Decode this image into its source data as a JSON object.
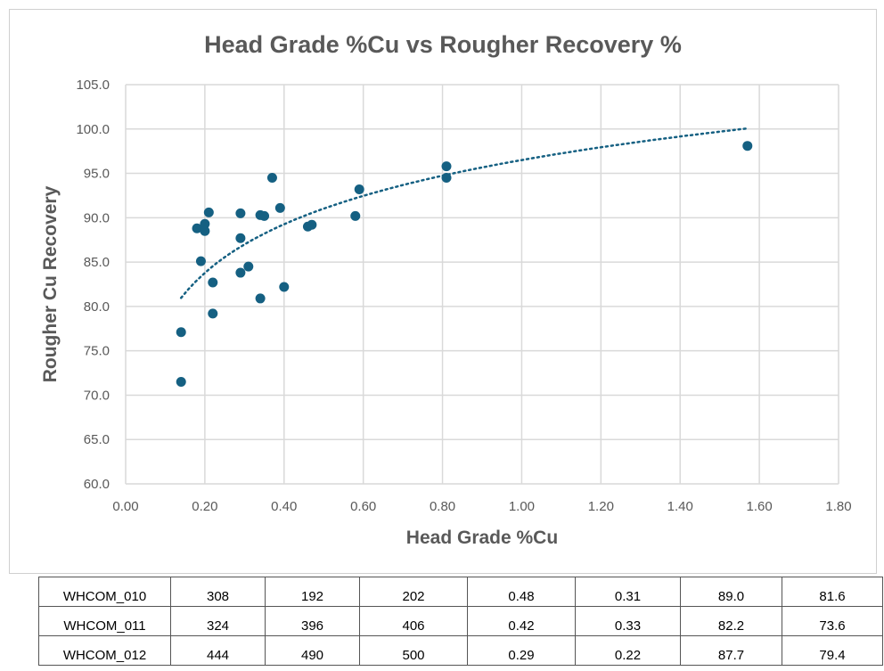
{
  "chart_data": {
    "type": "scatter",
    "title": "Head Grade %Cu vs Rougher Recovery %",
    "xlabel": "Head Grade %Cu",
    "ylabel": "Rougher Cu Recovery",
    "xlim": [
      0,
      1.8
    ],
    "ylim": [
      60,
      105
    ],
    "xticks": [
      "0.00",
      "0.20",
      "0.40",
      "0.60",
      "0.80",
      "1.00",
      "1.20",
      "1.40",
      "1.60",
      "1.80"
    ],
    "yticks": [
      "60.0",
      "65.0",
      "70.0",
      "75.0",
      "80.0",
      "85.0",
      "90.0",
      "95.0",
      "100.0",
      "105.0"
    ],
    "grid": true,
    "marker_color": "#156082",
    "points": [
      [
        0.14,
        71.5
      ],
      [
        0.14,
        77.1
      ],
      [
        0.18,
        88.8
      ],
      [
        0.2,
        89.3
      ],
      [
        0.2,
        88.5
      ],
      [
        0.21,
        90.6
      ],
      [
        0.19,
        85.1
      ],
      [
        0.22,
        82.7
      ],
      [
        0.22,
        79.2
      ],
      [
        0.29,
        90.5
      ],
      [
        0.29,
        87.7
      ],
      [
        0.29,
        83.8
      ],
      [
        0.31,
        84.5
      ],
      [
        0.34,
        80.9
      ],
      [
        0.34,
        90.3
      ],
      [
        0.35,
        90.2
      ],
      [
        0.37,
        94.5
      ],
      [
        0.39,
        91.1
      ],
      [
        0.4,
        82.2
      ],
      [
        0.46,
        89.0
      ],
      [
        0.47,
        89.2
      ],
      [
        0.58,
        90.2
      ],
      [
        0.59,
        93.2
      ],
      [
        0.81,
        95.8
      ],
      [
        0.81,
        94.5
      ],
      [
        1.57,
        98.1
      ]
    ],
    "trendline": {
      "type": "logarithmic",
      "style": "dotted",
      "a": 7.9,
      "b": 96.5,
      "x_range": [
        0.14,
        1.57
      ]
    }
  },
  "table": {
    "rows": [
      [
        "WHCOM_010",
        "308",
        "192",
        "202",
        "0.48",
        "0.31",
        "89.0",
        "81.6"
      ],
      [
        "WHCOM_011",
        "324",
        "396",
        "406",
        "0.42",
        "0.33",
        "82.2",
        "73.6"
      ],
      [
        "WHCOM_012",
        "444",
        "490",
        "500",
        "0.29",
        "0.22",
        "87.7",
        "79.4"
      ]
    ]
  }
}
